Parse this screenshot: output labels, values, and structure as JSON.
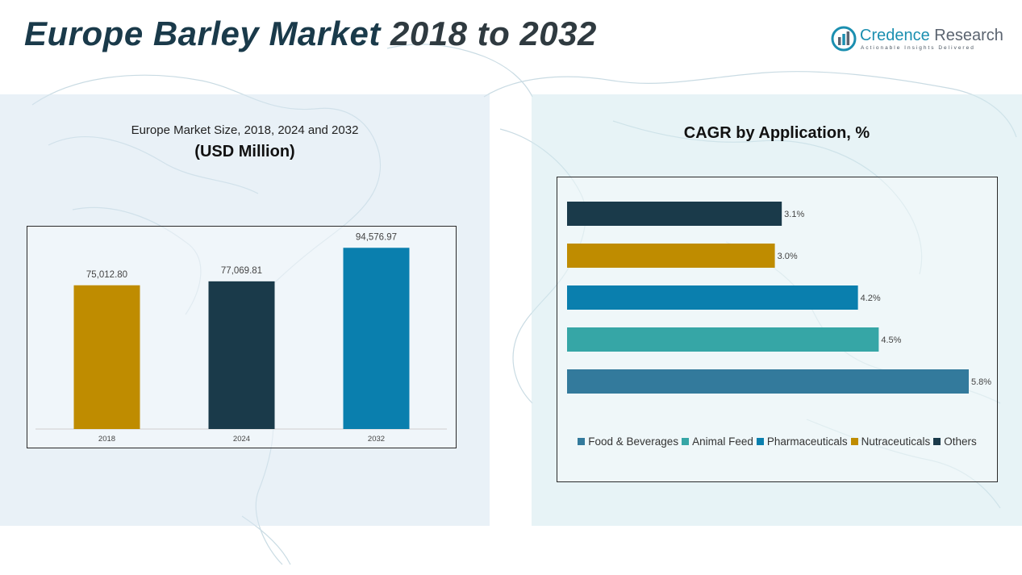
{
  "header": {
    "title_main": "Europe Barley Market",
    "title_rest": "2018 to 2032"
  },
  "logo": {
    "name_part1": "Credence",
    "name_part2": "Research",
    "tagline": "Actionable Insights Delivered"
  },
  "left_panel": {
    "subtitle": "Europe Market Size, 2018, 2024 and 2032",
    "unit": "(USD Million)"
  },
  "right_panel": {
    "title": "CAGR by Application, %"
  },
  "colors": {
    "gold": "#bf8c00",
    "navy": "#1a3a4a",
    "blue": "#0a7fae",
    "teal": "#36a6a6",
    "steel": "#337a9c"
  },
  "chart_data": [
    {
      "type": "bar",
      "title": "Europe Market Size, 2018, 2024 and 2032",
      "ylabel": "(USD Million)",
      "categories": [
        "2018",
        "2024",
        "2032"
      ],
      "values": [
        75012.8,
        77069.81,
        94576.97
      ],
      "value_labels": [
        "75,012.80",
        "77,069.81",
        "94,576.97"
      ],
      "bar_colors": [
        "#bf8c00",
        "#1a3a4a",
        "#0a7fae"
      ],
      "ylim": [
        0,
        101000
      ]
    },
    {
      "type": "bar",
      "orientation": "horizontal",
      "title": "CAGR by Application, %",
      "categories": [
        "Others",
        "Nutraceuticals",
        "Pharmaceuticals",
        "Animal Feed",
        "Food & Beverages"
      ],
      "values": [
        3.1,
        3.0,
        4.2,
        4.5,
        5.8
      ],
      "value_labels": [
        "3.1%",
        "3.0%",
        "4.2%",
        "4.5%",
        "5.8%"
      ],
      "bar_colors": [
        "#1a3a4a",
        "#bf8c00",
        "#0a7fae",
        "#36a6a6",
        "#337a9c"
      ],
      "xlim": [
        0,
        5.8
      ],
      "legend": [
        {
          "label": "Food & Beverages",
          "color": "#337a9c"
        },
        {
          "label": "Animal Feed",
          "color": "#36a6a6"
        },
        {
          "label": "Pharmaceuticals",
          "color": "#0a7fae"
        },
        {
          "label": "Nutraceuticals",
          "color": "#bf8c00"
        },
        {
          "label": "Others",
          "color": "#1a3a4a"
        }
      ],
      "legend_position": "bottom"
    }
  ]
}
